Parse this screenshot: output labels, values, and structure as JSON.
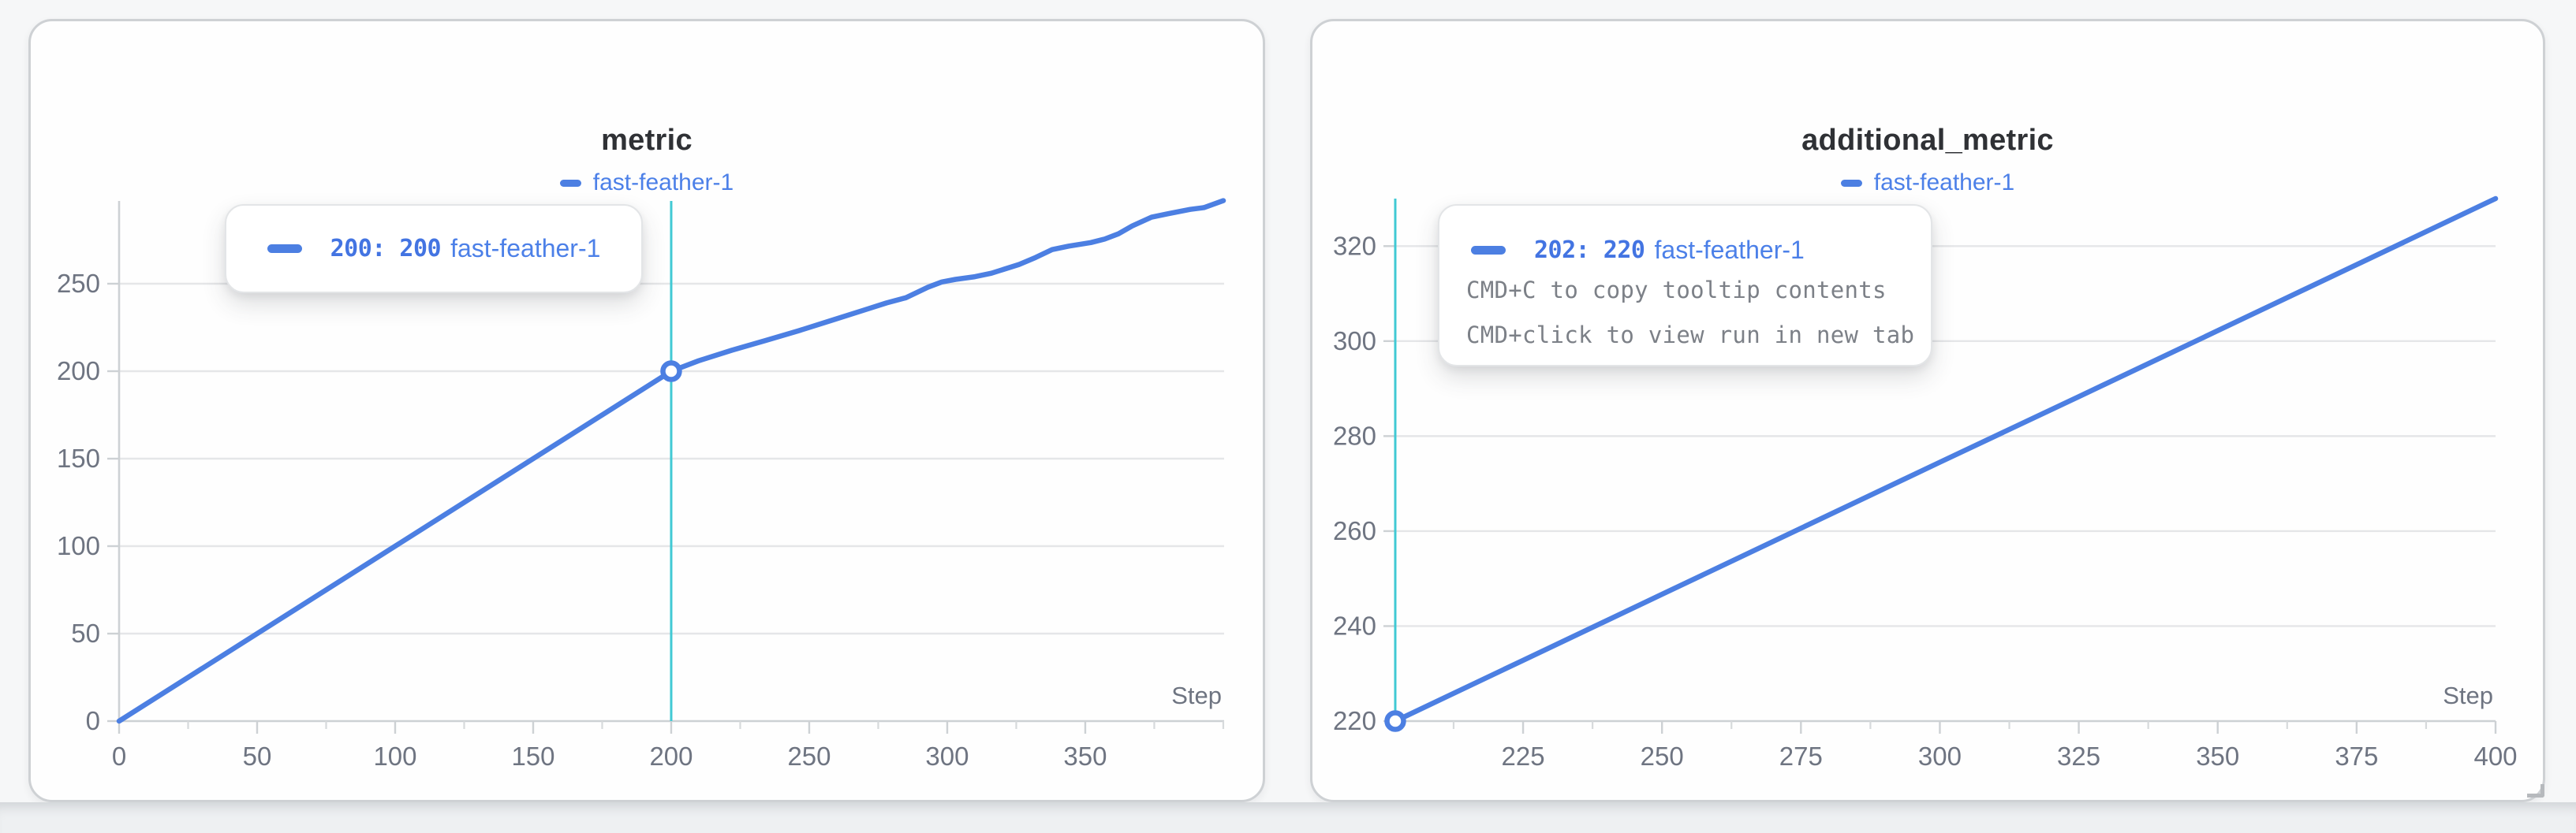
{
  "colors": {
    "line": "#4c7fe2",
    "crosshair": "#41c9d4",
    "grid": "#e5e6e8",
    "axis": "#cdd1d4",
    "minor_tick": "#d7dadc",
    "tick_label": "#6e7481",
    "title": "#2f3135",
    "tooltip_value": "#4374e2",
    "tooltip_hint": "#7c8087",
    "panel_background": "#fefefe",
    "page_background": "#f6f7f8"
  },
  "chart_data": [
    {
      "type": "line",
      "title": "metric",
      "xlabel": "Step",
      "ylabel": "",
      "x_range": [
        0,
        400.3
      ],
      "y_range": [
        0,
        297.3
      ],
      "x_ticks": [
        0,
        50,
        100,
        150,
        200,
        250,
        300,
        350
      ],
      "x_minor_ticks": [
        25,
        75,
        125,
        175,
        225,
        275,
        325,
        375,
        400
      ],
      "y_ticks": [
        0,
        50,
        100,
        150,
        200,
        250
      ],
      "grid": "horizontal",
      "legend_position": "top",
      "crosshair_x": 200,
      "marker": {
        "x": 200,
        "y": 200
      },
      "series": [
        {
          "name": "fast-feather-1",
          "color": "#4c7fe2",
          "points": [
            [
              0,
              0
            ],
            [
              25,
              25
            ],
            [
              50,
              50
            ],
            [
              75,
              75
            ],
            [
              100,
              100
            ],
            [
              125,
              125
            ],
            [
              150,
              150
            ],
            [
              175,
              175
            ],
            [
              200,
              200
            ],
            [
              210,
              206
            ],
            [
              222,
              212
            ],
            [
              234,
              217.5
            ],
            [
              246,
              223
            ],
            [
              258,
              229
            ],
            [
              270,
              235
            ],
            [
              278,
              239
            ],
            [
              285,
              242
            ],
            [
              293,
              248
            ],
            [
              298,
              251
            ],
            [
              303,
              252.5
            ],
            [
              310,
              254
            ],
            [
              316,
              256
            ],
            [
              326,
              261
            ],
            [
              332,
              265
            ],
            [
              338,
              269.5
            ],
            [
              344,
              271.5
            ],
            [
              352,
              273.5
            ],
            [
              357,
              275.5
            ],
            [
              362,
              278.5
            ],
            [
              367,
              283
            ],
            [
              374,
              288
            ],
            [
              380,
              290
            ],
            [
              388,
              292.5
            ],
            [
              393,
              293.5
            ],
            [
              400,
              297.5
            ]
          ]
        }
      ],
      "tooltip": {
        "label": "200: 200",
        "run": "fast-feather-1",
        "swatch_color": "#4c7fe2",
        "hints": []
      }
    },
    {
      "type": "line",
      "title": "additional_metric",
      "xlabel": "Step",
      "ylabel": "",
      "x_range": [
        202,
        400
      ],
      "y_range": [
        220,
        330
      ],
      "x_ticks": [
        225,
        250,
        275,
        300,
        325,
        350,
        375,
        400
      ],
      "x_minor_ticks": [
        212.5,
        237.5,
        262.5,
        287.5,
        312.5,
        337.5,
        362.5,
        387.5
      ],
      "y_ticks": [
        220,
        240,
        260,
        280,
        300,
        320
      ],
      "grid": "horizontal",
      "legend_position": "top",
      "crosshair_x": 202,
      "marker": {
        "x": 202,
        "y": 220
      },
      "series": [
        {
          "name": "fast-feather-1",
          "color": "#4c7fe2",
          "points": [
            [
              202,
              220
            ],
            [
              225,
              232.8
            ],
            [
              250,
              246.7
            ],
            [
              275,
              260.6
            ],
            [
              300,
              274.5
            ],
            [
              325,
              288.3
            ],
            [
              350,
              302.2
            ],
            [
              375,
              316.1
            ],
            [
              400,
              330
            ]
          ]
        }
      ],
      "tooltip": {
        "label": "202: 220",
        "run": "fast-feather-1",
        "swatch_color": "#4c7fe2",
        "hints": [
          "CMD+C to copy tooltip contents",
          "CMD+click to view run in new tab"
        ]
      }
    }
  ]
}
